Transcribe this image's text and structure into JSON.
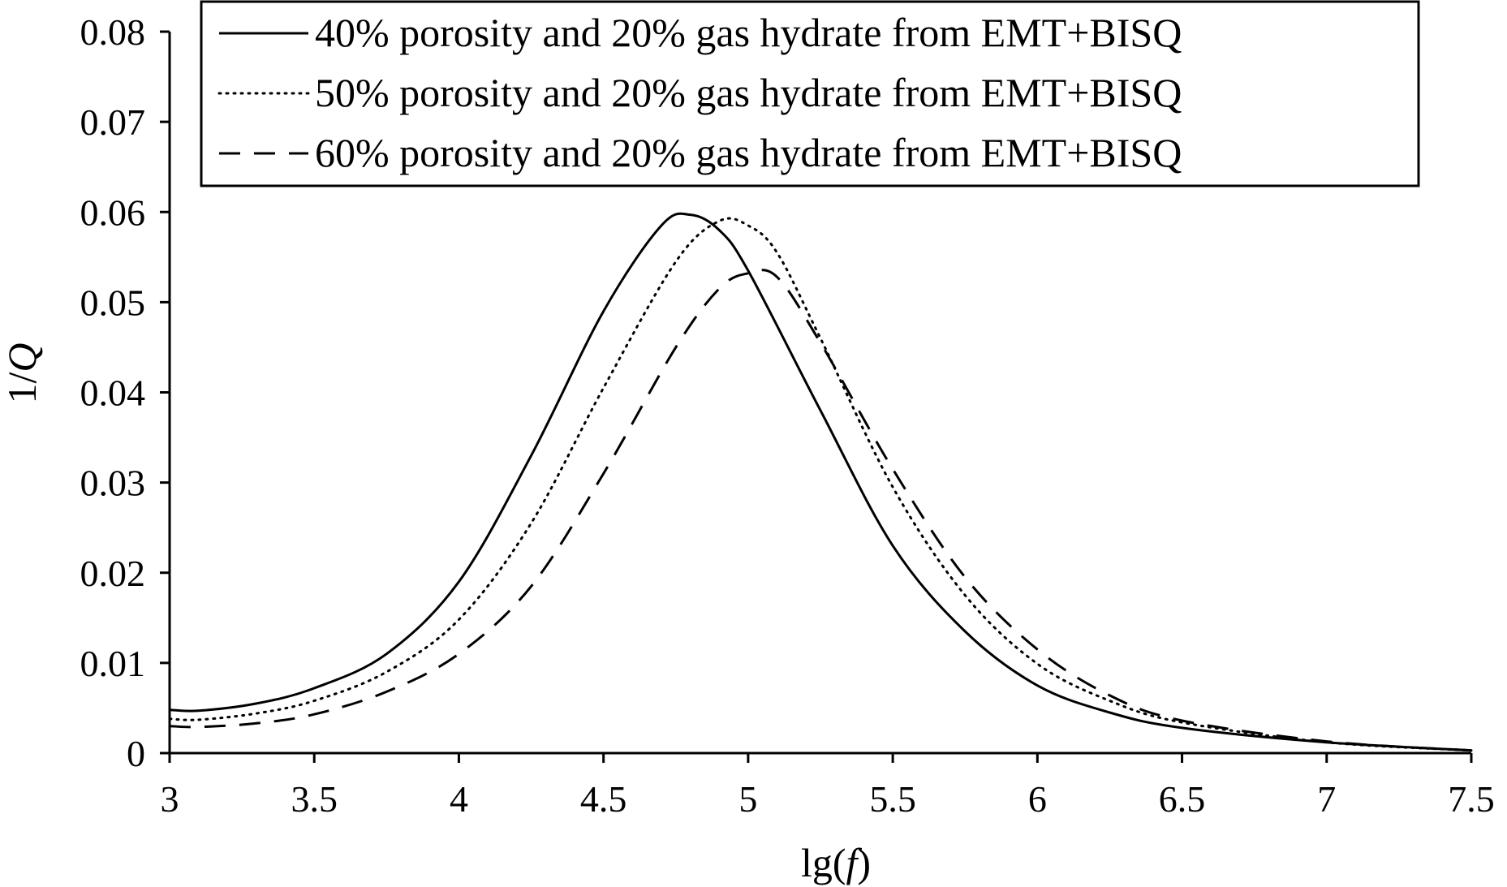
{
  "chart_data": {
    "type": "line",
    "title": "",
    "xlabel": "lg(f)",
    "xlabel_parts": {
      "prefix": "lg(",
      "var": "f",
      "suffix": ")"
    },
    "ylabel": "1/Q",
    "ylabel_parts": {
      "prefix": "1/",
      "var": "Q"
    },
    "xlim": [
      3,
      7.5
    ],
    "ylim": [
      0,
      0.08
    ],
    "x_ticks": [
      "3",
      "3.5",
      "4",
      "4.5",
      "5",
      "5.5",
      "6",
      "6.5",
      "7",
      "7.5"
    ],
    "y_ticks": [
      "0",
      "0.01",
      "0.02",
      "0.03",
      "0.04",
      "0.05",
      "0.06",
      "0.07",
      "0.08"
    ],
    "grid": false,
    "legend_position": "top-right",
    "series": [
      {
        "name": "40% porosity and 20% gas hydrate from EMT+BISQ",
        "style": "solid",
        "x": [
          3,
          3.1,
          3.3,
          3.5,
          3.75,
          4,
          4.25,
          4.5,
          4.7,
          4.8,
          4.9,
          5,
          5.25,
          5.5,
          5.75,
          6,
          6.25,
          6.5,
          7,
          7.5
        ],
        "y": [
          0.0048,
          0.0047,
          0.0055,
          0.0072,
          0.011,
          0.019,
          0.033,
          0.049,
          0.0585,
          0.0597,
          0.058,
          0.0535,
          0.038,
          0.023,
          0.0135,
          0.0075,
          0.0045,
          0.0028,
          0.0012,
          0.0003
        ]
      },
      {
        "name": "50% porosity and 20% gas hydrate from EMT+BISQ",
        "style": "dotted",
        "x": [
          3,
          3.1,
          3.3,
          3.5,
          3.75,
          4,
          4.25,
          4.5,
          4.75,
          4.9,
          5,
          5.1,
          5.25,
          5.5,
          5.75,
          6,
          6.25,
          6.5,
          7,
          7.5
        ],
        "y": [
          0.0038,
          0.0037,
          0.0044,
          0.0058,
          0.009,
          0.0148,
          0.0255,
          0.0405,
          0.0545,
          0.059,
          0.0585,
          0.0555,
          0.046,
          0.0295,
          0.0175,
          0.0099,
          0.0058,
          0.0034,
          0.0012,
          0.0003
        ]
      },
      {
        "name": "60% porosity and 20% gas hydrate from EMT+BISQ",
        "style": "dashed",
        "x": [
          3,
          3.1,
          3.3,
          3.5,
          3.75,
          4,
          4.25,
          4.5,
          4.75,
          4.9,
          5,
          5.1,
          5.25,
          5.5,
          5.75,
          6,
          6.25,
          6.5,
          7,
          7.5
        ],
        "y": [
          0.003,
          0.0029,
          0.0033,
          0.0043,
          0.0068,
          0.011,
          0.0185,
          0.031,
          0.045,
          0.0515,
          0.0532,
          0.0528,
          0.0455,
          0.0315,
          0.0195,
          0.0115,
          0.0064,
          0.0036,
          0.0013,
          0.0003
        ]
      }
    ]
  }
}
